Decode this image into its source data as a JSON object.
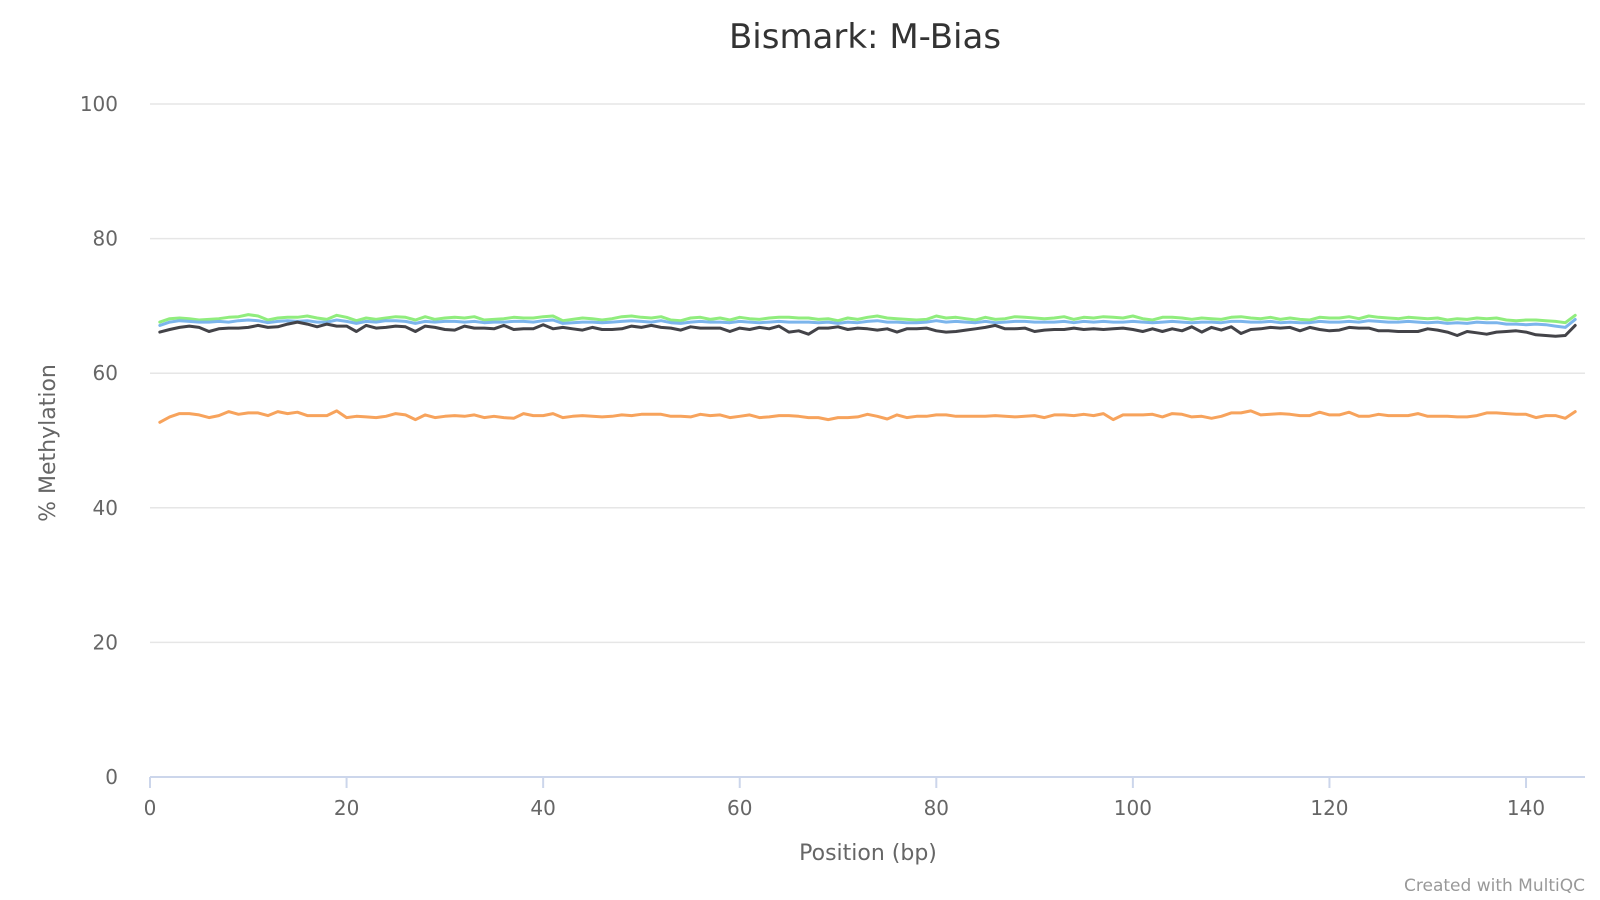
{
  "chart_data": {
    "type": "line",
    "title": "Bismark: M-Bias",
    "xlabel": "Position (bp)",
    "ylabel": "% Methylation",
    "xlim": [
      0,
      146
    ],
    "ylim": [
      0,
      100
    ],
    "x_ticks": [
      0,
      20,
      40,
      60,
      80,
      100,
      120,
      140
    ],
    "y_ticks": [
      0,
      20,
      40,
      60,
      80,
      100
    ],
    "grid": true,
    "legend": "none",
    "x": [
      1,
      2,
      3,
      4,
      5,
      6,
      7,
      8,
      9,
      10,
      11,
      12,
      13,
      14,
      15,
      16,
      17,
      18,
      19,
      20,
      21,
      22,
      23,
      24,
      25,
      26,
      27,
      28,
      29,
      30,
      31,
      32,
      33,
      34,
      35,
      36,
      37,
      38,
      39,
      40,
      41,
      42,
      43,
      44,
      45,
      46,
      47,
      48,
      49,
      50,
      51,
      52,
      53,
      54,
      55,
      56,
      57,
      58,
      59,
      60,
      61,
      62,
      63,
      64,
      65,
      66,
      67,
      68,
      69,
      70,
      71,
      72,
      73,
      74,
      75,
      76,
      77,
      78,
      79,
      80,
      81,
      82,
      83,
      84,
      85,
      86,
      87,
      88,
      89,
      90,
      91,
      92,
      93,
      94,
      95,
      96,
      97,
      98,
      99,
      100,
      101,
      102,
      103,
      104,
      105,
      106,
      107,
      108,
      109,
      110,
      111,
      112,
      113,
      114,
      115,
      116,
      117,
      118,
      119,
      120,
      121,
      122,
      123,
      124,
      125,
      126,
      127,
      128,
      129,
      130,
      131,
      132,
      133,
      134,
      135,
      136,
      137,
      138,
      139,
      140,
      141,
      142,
      143,
      144,
      145
    ],
    "series": [
      {
        "color": "#90ed7d",
        "values": [
          67.6,
          68.1,
          68.2,
          68.1,
          67.9,
          68.0,
          68.1,
          68.3,
          68.4,
          68.7,
          68.5,
          67.9,
          68.2,
          68.3,
          68.3,
          68.5,
          68.2,
          68.0,
          68.6,
          68.3,
          67.8,
          68.2,
          68.0,
          68.2,
          68.4,
          68.3,
          67.9,
          68.4,
          68.0,
          68.2,
          68.3,
          68.2,
          68.4,
          67.9,
          68.0,
          68.1,
          68.3,
          68.2,
          68.2,
          68.4,
          68.5,
          67.8,
          68.0,
          68.2,
          68.1,
          67.9,
          68.1,
          68.4,
          68.5,
          68.3,
          68.2,
          68.4,
          67.9,
          67.8,
          68.2,
          68.3,
          68.0,
          68.2,
          67.9,
          68.3,
          68.1,
          68.0,
          68.2,
          68.3,
          68.3,
          68.2,
          68.2,
          68.0,
          68.1,
          67.8,
          68.2,
          68.0,
          68.3,
          68.5,
          68.2,
          68.1,
          68.0,
          67.9,
          68.0,
          68.5,
          68.2,
          68.3,
          68.1,
          67.9,
          68.3,
          68.0,
          68.1,
          68.4,
          68.3,
          68.2,
          68.1,
          68.2,
          68.4,
          68.0,
          68.3,
          68.2,
          68.4,
          68.3,
          68.2,
          68.5,
          68.1,
          67.9,
          68.3,
          68.3,
          68.2,
          68.0,
          68.2,
          68.1,
          68.0,
          68.3,
          68.4,
          68.2,
          68.1,
          68.3,
          68.0,
          68.2,
          68.0,
          67.9,
          68.3,
          68.2,
          68.2,
          68.4,
          68.1,
          68.5,
          68.3,
          68.2,
          68.1,
          68.3,
          68.2,
          68.1,
          68.2,
          67.9,
          68.1,
          68.0,
          68.2,
          68.1,
          68.2,
          67.9,
          67.8,
          67.9,
          67.9,
          67.8,
          67.7,
          67.5,
          68.6
        ]
      },
      {
        "color": "#7cb5ec",
        "values": [
          67.1,
          67.6,
          67.8,
          67.7,
          67.6,
          67.6,
          67.7,
          67.6,
          67.8,
          67.9,
          67.8,
          67.5,
          67.7,
          67.8,
          67.7,
          67.8,
          67.6,
          67.6,
          67.9,
          67.7,
          67.4,
          67.7,
          67.6,
          67.8,
          67.8,
          67.7,
          67.4,
          67.7,
          67.6,
          67.7,
          67.7,
          67.6,
          67.7,
          67.5,
          67.6,
          67.6,
          67.7,
          67.7,
          67.6,
          67.8,
          67.9,
          67.4,
          67.5,
          67.6,
          67.6,
          67.5,
          67.6,
          67.7,
          67.8,
          67.7,
          67.6,
          67.8,
          67.5,
          67.4,
          67.6,
          67.7,
          67.6,
          67.6,
          67.5,
          67.7,
          67.6,
          67.5,
          67.6,
          67.7,
          67.6,
          67.6,
          67.6,
          67.5,
          67.6,
          67.4,
          67.6,
          67.5,
          67.7,
          67.8,
          67.6,
          67.6,
          67.5,
          67.5,
          67.6,
          67.8,
          67.6,
          67.7,
          67.6,
          67.5,
          67.7,
          67.5,
          67.6,
          67.7,
          67.7,
          67.6,
          67.6,
          67.6,
          67.7,
          67.5,
          67.7,
          67.6,
          67.7,
          67.6,
          67.6,
          67.7,
          67.6,
          67.5,
          67.6,
          67.7,
          67.6,
          67.5,
          67.6,
          67.6,
          67.5,
          67.7,
          67.7,
          67.6,
          67.6,
          67.7,
          67.5,
          67.6,
          67.5,
          67.5,
          67.7,
          67.6,
          67.6,
          67.7,
          67.6,
          67.8,
          67.7,
          67.6,
          67.6,
          67.7,
          67.6,
          67.5,
          67.6,
          67.4,
          67.5,
          67.4,
          67.6,
          67.5,
          67.5,
          67.3,
          67.3,
          67.2,
          67.3,
          67.2,
          67.0,
          66.8,
          68.0
        ]
      },
      {
        "color": "#434348",
        "values": [
          66.1,
          66.5,
          66.8,
          67.0,
          66.8,
          66.2,
          66.6,
          66.7,
          66.7,
          66.8,
          67.1,
          66.8,
          66.9,
          67.3,
          67.6,
          67.3,
          66.9,
          67.3,
          67.0,
          67.0,
          66.2,
          67.1,
          66.7,
          66.8,
          67.0,
          66.9,
          66.2,
          67.0,
          66.8,
          66.5,
          66.4,
          67.0,
          66.7,
          66.7,
          66.6,
          67.1,
          66.5,
          66.6,
          66.6,
          67.2,
          66.6,
          66.8,
          66.6,
          66.4,
          66.8,
          66.5,
          66.5,
          66.6,
          67.0,
          66.8,
          67.1,
          66.8,
          66.7,
          66.4,
          66.9,
          66.7,
          66.7,
          66.7,
          66.2,
          66.7,
          66.5,
          66.8,
          66.6,
          67.0,
          66.1,
          66.3,
          65.8,
          66.7,
          66.7,
          66.9,
          66.5,
          66.7,
          66.6,
          66.4,
          66.6,
          66.1,
          66.6,
          66.6,
          66.7,
          66.3,
          66.1,
          66.2,
          66.4,
          66.6,
          66.8,
          67.1,
          66.6,
          66.6,
          66.7,
          66.2,
          66.4,
          66.5,
          66.5,
          66.7,
          66.5,
          66.6,
          66.5,
          66.6,
          66.7,
          66.5,
          66.2,
          66.6,
          66.2,
          66.6,
          66.3,
          66.9,
          66.1,
          66.8,
          66.4,
          66.9,
          65.9,
          66.5,
          66.6,
          66.8,
          66.7,
          66.8,
          66.3,
          66.8,
          66.5,
          66.3,
          66.4,
          66.8,
          66.7,
          66.7,
          66.3,
          66.3,
          66.2,
          66.2,
          66.2,
          66.6,
          66.4,
          66.1,
          65.6,
          66.2,
          66.0,
          65.8,
          66.1,
          66.2,
          66.3,
          66.1,
          65.7,
          65.6,
          65.5,
          65.6,
          67.1
        ]
      },
      {
        "color": "#f7a35c",
        "values": [
          52.7,
          53.5,
          54.0,
          54.0,
          53.8,
          53.4,
          53.7,
          54.3,
          53.9,
          54.1,
          54.1,
          53.7,
          54.3,
          54.0,
          54.2,
          53.7,
          53.7,
          53.7,
          54.4,
          53.4,
          53.6,
          53.5,
          53.4,
          53.6,
          54.0,
          53.8,
          53.1,
          53.8,
          53.4,
          53.6,
          53.7,
          53.6,
          53.8,
          53.4,
          53.6,
          53.4,
          53.3,
          54.0,
          53.7,
          53.7,
          54.0,
          53.4,
          53.6,
          53.7,
          53.6,
          53.5,
          53.6,
          53.8,
          53.7,
          53.9,
          53.9,
          53.9,
          53.6,
          53.6,
          53.5,
          53.9,
          53.7,
          53.8,
          53.4,
          53.6,
          53.8,
          53.4,
          53.5,
          53.7,
          53.7,
          53.6,
          53.4,
          53.4,
          53.1,
          53.4,
          53.4,
          53.5,
          53.9,
          53.6,
          53.2,
          53.8,
          53.4,
          53.6,
          53.6,
          53.8,
          53.8,
          53.6,
          53.6,
          53.6,
          53.6,
          53.7,
          53.6,
          53.5,
          53.6,
          53.7,
          53.4,
          53.8,
          53.8,
          53.7,
          53.9,
          53.7,
          54.0,
          53.1,
          53.8,
          53.8,
          53.8,
          53.9,
          53.5,
          54.0,
          53.9,
          53.5,
          53.6,
          53.3,
          53.6,
          54.1,
          54.1,
          54.4,
          53.8,
          53.9,
          54.0,
          53.9,
          53.7,
          53.7,
          54.2,
          53.8,
          53.8,
          54.2,
          53.6,
          53.6,
          53.9,
          53.7,
          53.7,
          53.7,
          54.0,
          53.6,
          53.6,
          53.6,
          53.5,
          53.5,
          53.7,
          54.1,
          54.1,
          54.0,
          53.9,
          53.9,
          53.4,
          53.7,
          53.7,
          53.3,
          54.3
        ]
      }
    ]
  },
  "credit": "Created with MultiQC"
}
